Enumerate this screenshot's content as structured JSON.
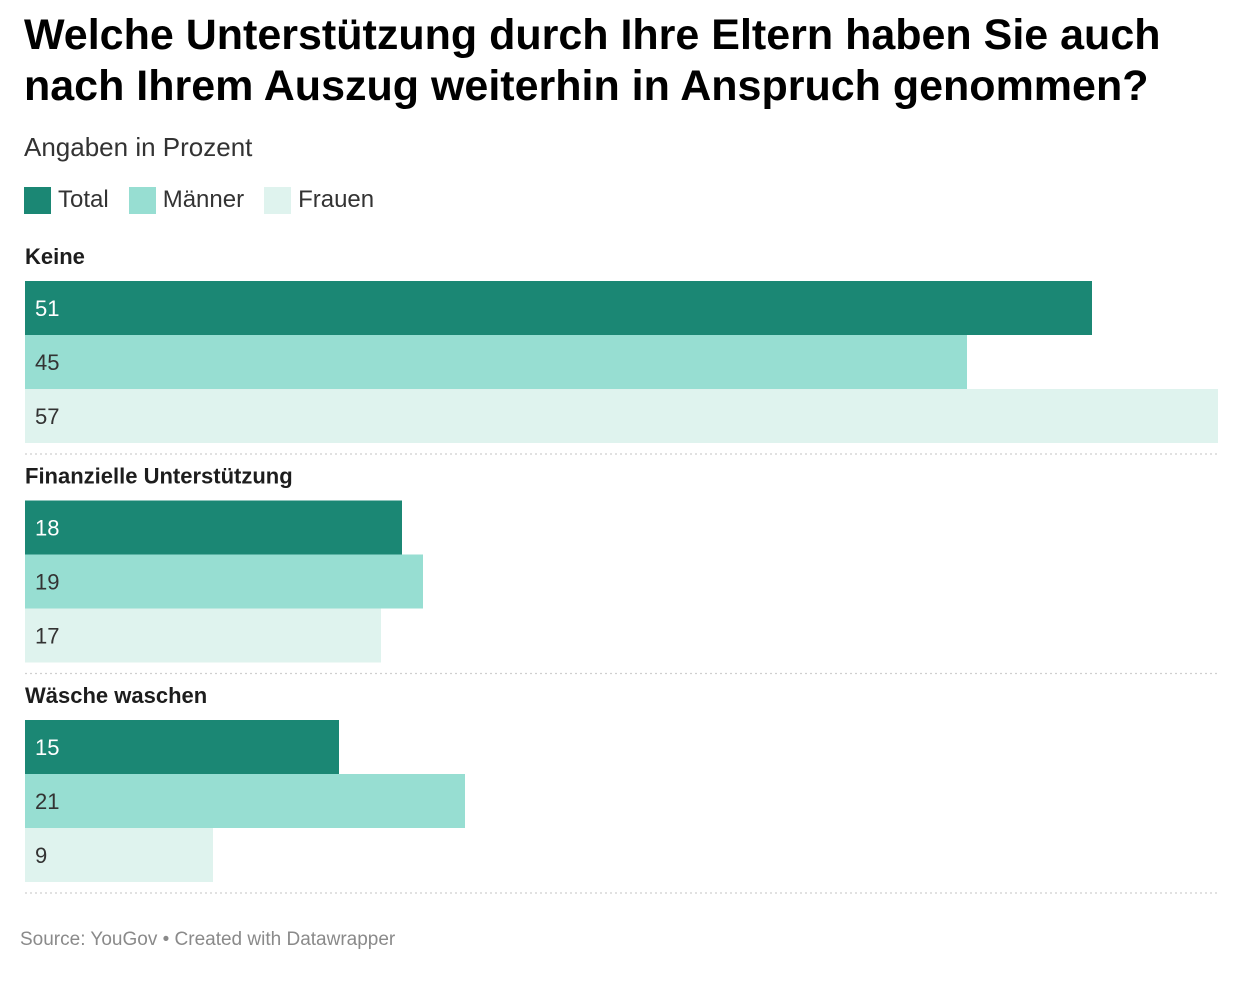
{
  "header": {
    "title": "Welche Unterstützung durch Ihre Eltern haben Sie auch nach Ihrem Auszug weiterhin in Anspruch genommen?",
    "subtitle": "Angaben in Prozent"
  },
  "footer": {
    "source_text": "Source: YouGov • Created with Datawrapper"
  },
  "colors": {
    "total": "#1b8774",
    "maenner": "#97ded2",
    "frauen": "#dff3ee",
    "label_on_dark": "#ffffff",
    "label_on_light": "#333333"
  },
  "chart_data": {
    "type": "bar",
    "orientation": "horizontal",
    "title": "Welche Unterstützung durch Ihre Eltern haben Sie auch nach Ihrem Auszug weiterhin in Anspruch genommen?",
    "subtitle": "Angaben in Prozent",
    "categories": [
      "Keine",
      "Finanzielle Unterstützung",
      "Wäsche waschen"
    ],
    "series": [
      {
        "name": "Total",
        "values": [
          51,
          18,
          15
        ]
      },
      {
        "name": "Männer",
        "values": [
          45,
          19,
          21
        ]
      },
      {
        "name": "Frauen",
        "values": [
          57,
          17,
          9
        ]
      }
    ],
    "xlim": [
      0,
      57
    ],
    "grid": false,
    "legend_position": "top-left"
  }
}
